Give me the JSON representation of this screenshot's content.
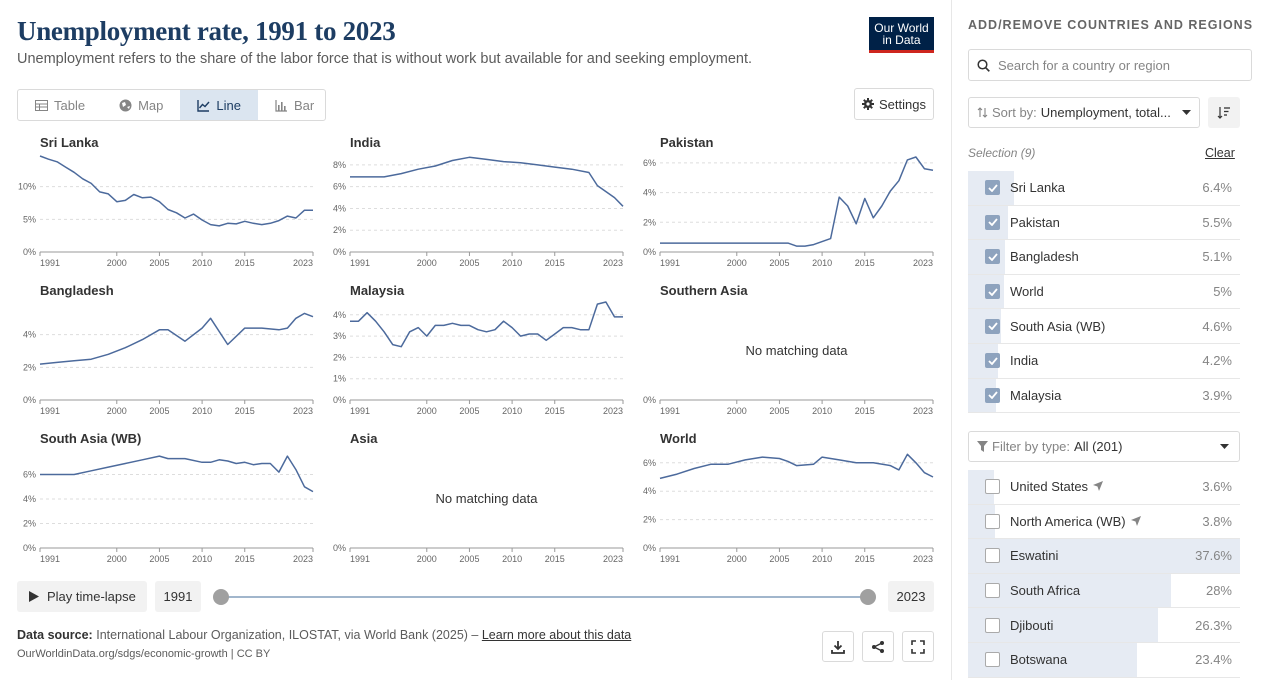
{
  "header": {
    "title": "Unemployment rate, 1991 to 2023",
    "subtitle": "Unemployment refers to the share of the labor force that is without work but available for and seeking employment.",
    "logo_line1": "Our World",
    "logo_line2": "in Data"
  },
  "tabs": [
    {
      "label": "Table",
      "icon": "table-icon"
    },
    {
      "label": "Map",
      "icon": "globe-icon"
    },
    {
      "label": "Line",
      "icon": "line-chart-icon",
      "active": true
    },
    {
      "label": "Bar",
      "icon": "bar-chart-icon"
    }
  ],
  "settings_label": "Settings",
  "no_data_text": "No matching data",
  "chart_data": [
    {
      "type": "line",
      "title": "Sri Lanka",
      "x": [
        1991,
        1992,
        1993,
        1994,
        1995,
        1996,
        1997,
        1998,
        1999,
        2000,
        2001,
        2002,
        2003,
        2004,
        2005,
        2006,
        2007,
        2008,
        2009,
        2010,
        2011,
        2012,
        2013,
        2014,
        2015,
        2016,
        2017,
        2018,
        2019,
        2020,
        2021,
        2022,
        2023
      ],
      "values": [
        14.7,
        14.2,
        13.8,
        13.0,
        12.2,
        11.2,
        10.5,
        9.2,
        8.9,
        7.7,
        7.9,
        8.8,
        8.3,
        8.4,
        7.7,
        6.5,
        6.0,
        5.2,
        5.8,
        4.9,
        4.2,
        4.0,
        4.4,
        4.3,
        4.7,
        4.4,
        4.2,
        4.4,
        4.8,
        5.5,
        5.2,
        6.4,
        6.4
      ],
      "yticks": [
        "0%",
        "5%",
        "10%"
      ],
      "ymax": 15,
      "xticks": [
        "1991",
        "2000",
        "2005",
        "2010",
        "2015",
        "2023"
      ]
    },
    {
      "type": "line",
      "title": "India",
      "x": [
        1991,
        1993,
        1995,
        1997,
        1999,
        2001,
        2003,
        2005,
        2007,
        2009,
        2011,
        2013,
        2015,
        2017,
        2019,
        2020,
        2022,
        2023
      ],
      "values": [
        6.9,
        6.9,
        6.9,
        7.2,
        7.6,
        7.9,
        8.4,
        8.7,
        8.5,
        8.3,
        8.2,
        8.0,
        7.8,
        7.6,
        7.3,
        6.1,
        5.0,
        4.2
      ],
      "yticks": [
        "0%",
        "2%",
        "4%",
        "6%",
        "8%"
      ],
      "ymax": 9,
      "xticks": [
        "1991",
        "2000",
        "2005",
        "2010",
        "2015",
        "2023"
      ]
    },
    {
      "type": "line",
      "title": "Pakistan",
      "x": [
        1991,
        1993,
        1995,
        1997,
        1999,
        2001,
        2003,
        2005,
        2006,
        2007,
        2008,
        2009,
        2010,
        2011,
        2012,
        2013,
        2014,
        2015,
        2016,
        2017,
        2018,
        2019,
        2020,
        2021,
        2022,
        2023
      ],
      "values": [
        0.6,
        0.6,
        0.6,
        0.6,
        0.6,
        0.6,
        0.6,
        0.6,
        0.6,
        0.4,
        0.4,
        0.5,
        0.7,
        0.9,
        3.7,
        3.1,
        1.9,
        3.6,
        2.3,
        3.1,
        4.1,
        4.8,
        6.2,
        6.4,
        5.6,
        5.5
      ],
      "yticks": [
        "0%",
        "2%",
        "4%",
        "6%"
      ],
      "ymax": 6.6,
      "xticks": [
        "1991",
        "2000",
        "2005",
        "2010",
        "2015",
        "2023"
      ]
    },
    {
      "type": "line",
      "title": "Bangladesh",
      "x": [
        1991,
        1993,
        1995,
        1997,
        1999,
        2001,
        2003,
        2005,
        2006,
        2008,
        2010,
        2011,
        2013,
        2015,
        2017,
        2019,
        2020,
        2021,
        2022,
        2023
      ],
      "values": [
        2.2,
        2.3,
        2.4,
        2.5,
        2.8,
        3.2,
        3.7,
        4.3,
        4.3,
        3.6,
        4.4,
        5.0,
        3.4,
        4.4,
        4.4,
        4.3,
        4.4,
        5.0,
        5.3,
        5.1
      ],
      "yticks": [
        "0%",
        "2%",
        "4%"
      ],
      "ymax": 6,
      "xticks": [
        "1991",
        "2000",
        "2005",
        "2010",
        "2015",
        "2023"
      ]
    },
    {
      "type": "line",
      "title": "Malaysia",
      "x": [
        1991,
        1992,
        1993,
        1994,
        1995,
        1996,
        1997,
        1998,
        1999,
        2000,
        2001,
        2002,
        2003,
        2004,
        2005,
        2006,
        2007,
        2008,
        2009,
        2010,
        2011,
        2012,
        2013,
        2014,
        2015,
        2016,
        2017,
        2018,
        2019,
        2020,
        2021,
        2022,
        2023
      ],
      "values": [
        3.7,
        3.7,
        4.1,
        3.7,
        3.2,
        2.6,
        2.5,
        3.2,
        3.4,
        3.0,
        3.5,
        3.5,
        3.6,
        3.5,
        3.5,
        3.3,
        3.2,
        3.3,
        3.7,
        3.4,
        3.0,
        3.1,
        3.1,
        2.8,
        3.1,
        3.4,
        3.4,
        3.3,
        3.3,
        4.5,
        4.6,
        3.9,
        3.9
      ],
      "yticks": [
        "0%",
        "1%",
        "2%",
        "3%",
        "4%"
      ],
      "ymax": 4.6,
      "xticks": [
        "1991",
        "2000",
        "2005",
        "2010",
        "2015",
        "2023"
      ]
    },
    {
      "type": "line",
      "title": "Southern Asia",
      "x": [],
      "values": [],
      "yticks": [
        "0%"
      ],
      "ymax": 1,
      "xticks": [
        "1991",
        "2000",
        "2005",
        "2010",
        "2015",
        "2023"
      ],
      "no_data": true
    },
    {
      "type": "line",
      "title": "South Asia (WB)",
      "x": [
        1991,
        1993,
        1995,
        1997,
        1999,
        2001,
        2003,
        2005,
        2006,
        2008,
        2010,
        2011,
        2012,
        2013,
        2014,
        2015,
        2016,
        2017,
        2018,
        2019,
        2020,
        2021,
        2022,
        2023
      ],
      "values": [
        6.0,
        6.0,
        6.0,
        6.3,
        6.6,
        6.9,
        7.2,
        7.5,
        7.3,
        7.3,
        7.0,
        7.0,
        7.2,
        7.1,
        6.9,
        7.0,
        6.8,
        6.9,
        6.9,
        6.2,
        7.5,
        6.4,
        5.0,
        4.6
      ],
      "yticks": [
        "0%",
        "2%",
        "4%",
        "6%"
      ],
      "ymax": 8,
      "xticks": [
        "1991",
        "2000",
        "2005",
        "2010",
        "2015",
        "2023"
      ]
    },
    {
      "type": "line",
      "title": "Asia",
      "x": [],
      "values": [],
      "yticks": [
        "0%"
      ],
      "ymax": 1,
      "xticks": [
        "1991",
        "2000",
        "2005",
        "2010",
        "2015",
        "2023"
      ],
      "no_data": true
    },
    {
      "type": "line",
      "title": "World",
      "x": [
        1991,
        1993,
        1995,
        1997,
        1999,
        2001,
        2003,
        2005,
        2006,
        2007,
        2009,
        2010,
        2012,
        2014,
        2016,
        2018,
        2019,
        2020,
        2021,
        2022,
        2023
      ],
      "values": [
        4.9,
        5.2,
        5.6,
        5.9,
        5.9,
        6.2,
        6.4,
        6.3,
        6.1,
        5.8,
        5.9,
        6.4,
        6.2,
        6.0,
        6.0,
        5.8,
        5.5,
        6.6,
        6.0,
        5.3,
        5.0
      ],
      "yticks": [
        "0%",
        "2%",
        "4%",
        "6%"
      ],
      "ymax": 6.9,
      "xticks": [
        "1991",
        "2000",
        "2005",
        "2010",
        "2015",
        "2023"
      ]
    }
  ],
  "timeline": {
    "play_label": "Play time-lapse",
    "start_year": "1991",
    "end_year": "2023",
    "start_fraction": 0,
    "end_fraction": 1
  },
  "footer": {
    "source_label": "Data source:",
    "source_text": "International Labour Organization, ILOSTAT, via World Bank (2025) – ",
    "learn_more": "Learn more about this data",
    "url": "OurWorldinData.org/sdgs/economic-growth | CC BY"
  },
  "sidebar": {
    "title": "ADD/REMOVE COUNTRIES AND REGIONS",
    "search_placeholder": "Search for a country or region",
    "sort_label": "Sort by:",
    "sort_value": "Unemployment, total...",
    "selection_label": "Selection (9)",
    "clear_label": "Clear",
    "selected": [
      {
        "name": "Sri Lanka",
        "value": "6.4%",
        "share": 0.17
      },
      {
        "name": "Pakistan",
        "value": "5.5%",
        "share": 0.146
      },
      {
        "name": "Bangladesh",
        "value": "5.1%",
        "share": 0.136
      },
      {
        "name": "World",
        "value": "5%",
        "share": 0.133
      },
      {
        "name": "South Asia (WB)",
        "value": "4.6%",
        "share": 0.122
      },
      {
        "name": "India",
        "value": "4.2%",
        "share": 0.112
      },
      {
        "name": "Malaysia",
        "value": "3.9%",
        "share": 0.104
      }
    ],
    "filter_label": "Filter by type:",
    "filter_value": "All (201)",
    "others": [
      {
        "name": "United States",
        "value": "3.6%",
        "share": 0.096,
        "icon": "location-arrow-icon"
      },
      {
        "name": "North America (WB)",
        "value": "3.8%",
        "share": 0.101,
        "icon": "location-arrow-icon"
      },
      {
        "name": "Eswatini",
        "value": "37.6%",
        "share": 1.0
      },
      {
        "name": "South Africa",
        "value": "28%",
        "share": 0.745
      },
      {
        "name": "Djibouti",
        "value": "26.3%",
        "share": 0.7
      },
      {
        "name": "Botswana",
        "value": "23.4%",
        "share": 0.622
      }
    ]
  },
  "colors": {
    "line": "#4c6a9c",
    "accent": "#1d3d63"
  }
}
